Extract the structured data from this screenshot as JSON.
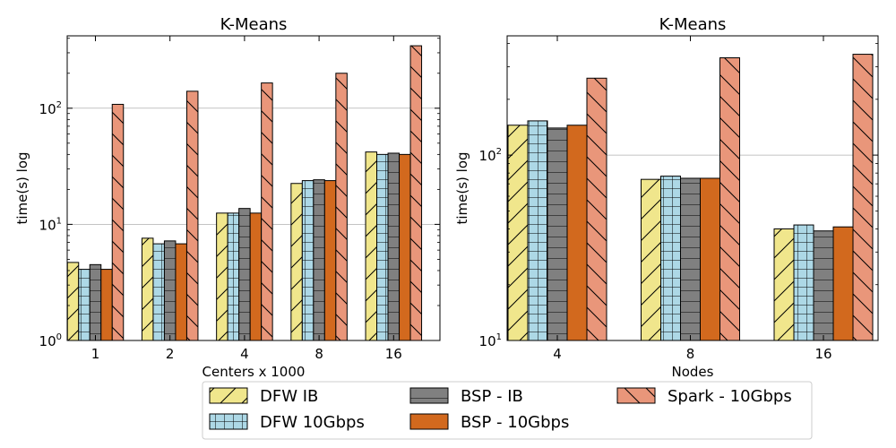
{
  "chart_data": [
    {
      "type": "bar",
      "title": "K-Means",
      "xlabel": "Centers x 1000",
      "ylabel": "time(s) log",
      "yscale": "log",
      "ylim": [
        1,
        420
      ],
      "yticks": [
        {
          "value": 1,
          "base": "10",
          "exp": "0"
        },
        {
          "value": 10,
          "base": "10",
          "exp": "1"
        },
        {
          "value": 100,
          "base": "10",
          "exp": "2"
        }
      ],
      "grid": "horizontal major",
      "categories": [
        "1",
        "2",
        "4",
        "8",
        "16"
      ],
      "series": [
        {
          "name": "DFW IB",
          "values": [
            4.7,
            7.6,
            12.5,
            22.5,
            42
          ]
        },
        {
          "name": "DFW 10Gbps",
          "values": [
            4.1,
            6.8,
            12.5,
            23.8,
            40
          ]
        },
        {
          "name": "BSP - IB",
          "values": [
            4.5,
            7.2,
            13.7,
            24.2,
            41
          ]
        },
        {
          "name": "BSP - 10Gbps",
          "values": [
            4.1,
            6.8,
            12.5,
            23.8,
            40
          ]
        },
        {
          "name": "Spark - 10Gbps",
          "values": [
            108,
            140,
            165,
            200,
            345
          ]
        }
      ]
    },
    {
      "type": "bar",
      "title": "K-Means",
      "xlabel": "Nodes",
      "ylabel": "time(s) log",
      "yscale": "log",
      "ylim": [
        10,
        440
      ],
      "yticks": [
        {
          "value": 10,
          "base": "10",
          "exp": "1"
        },
        {
          "value": 100,
          "base": "10",
          "exp": "2"
        }
      ],
      "grid": "horizontal major",
      "categories": [
        "4",
        "8",
        "16"
      ],
      "series": [
        {
          "name": "DFW IB",
          "values": [
            145,
            74,
            40
          ]
        },
        {
          "name": "DFW 10Gbps",
          "values": [
            153,
            77,
            42
          ]
        },
        {
          "name": "BSP - IB",
          "values": [
            140,
            75,
            39
          ]
        },
        {
          "name": "BSP - 10Gbps",
          "values": [
            145,
            75,
            41
          ]
        },
        {
          "name": "Spark - 10Gbps",
          "values": [
            260,
            335,
            350
          ]
        }
      ]
    }
  ],
  "legend": {
    "placement": "bottom-center",
    "entries": [
      "DFW IB",
      "DFW 10Gbps",
      "BSP - IB",
      "BSP - 10Gbps",
      "Spark - 10Gbps"
    ]
  },
  "styles": [
    {
      "fill": "#f0e68c",
      "pattern": "diagonal-forward"
    },
    {
      "fill": "#add8e6",
      "pattern": "grid"
    },
    {
      "fill": "#808080",
      "pattern": "horizontal"
    },
    {
      "fill": "#d2691e",
      "pattern": "none"
    },
    {
      "fill": "#e9967a",
      "pattern": "diagonal-back"
    }
  ]
}
